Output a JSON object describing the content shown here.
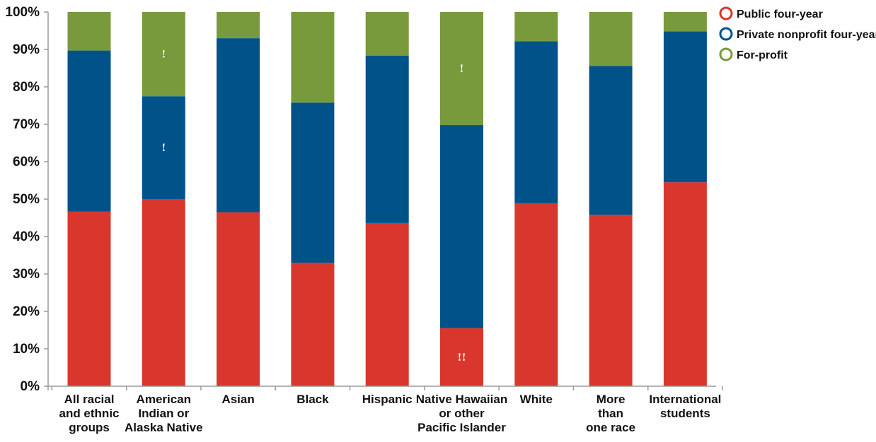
{
  "chart_data": {
    "type": "bar",
    "stacked": true,
    "categories": [
      [
        "All racial",
        "and ethnic",
        "groups"
      ],
      [
        "American",
        "Indian or",
        "Alaska Native"
      ],
      [
        "Asian"
      ],
      [
        "Black"
      ],
      [
        "Hispanic"
      ],
      [
        "Native Hawaiian",
        "or other",
        "Pacific Islander"
      ],
      [
        "White"
      ],
      [
        "More",
        "than",
        "one race"
      ],
      [
        "International",
        "students"
      ]
    ],
    "series": [
      {
        "name": "Public four-year",
        "color": "#d9372e",
        "values": [
          46.7,
          50.0,
          46.5,
          33.0,
          43.6,
          15.5,
          48.9,
          45.8,
          54.5
        ],
        "flags": [
          "",
          "",
          "",
          "",
          "",
          "!!",
          "",
          "",
          ""
        ]
      },
      {
        "name": "Private nonprofit four-year",
        "color": "#02528a",
        "values": [
          43.0,
          27.5,
          46.5,
          42.8,
          44.7,
          54.3,
          43.3,
          39.8,
          40.3
        ],
        "flags": [
          "",
          "!",
          "",
          "",
          "",
          "",
          "",
          "",
          ""
        ]
      },
      {
        "name": "For-profit",
        "color": "#789a3d",
        "values": [
          10.3,
          22.5,
          7.0,
          24.2,
          11.7,
          30.2,
          7.8,
          14.4,
          5.2
        ],
        "flags": [
          "",
          "!",
          "",
          "",
          "",
          "!",
          "",
          "",
          ""
        ]
      }
    ],
    "yticks": [
      "0%",
      "10%",
      "20%",
      "30%",
      "40%",
      "50%",
      "60%",
      "70%",
      "80%",
      "90%",
      "100%"
    ],
    "ylim": [
      0,
      100
    ],
    "grid": false,
    "legend_position": "top-right",
    "title": "",
    "xlabel": "",
    "ylabel": ""
  }
}
